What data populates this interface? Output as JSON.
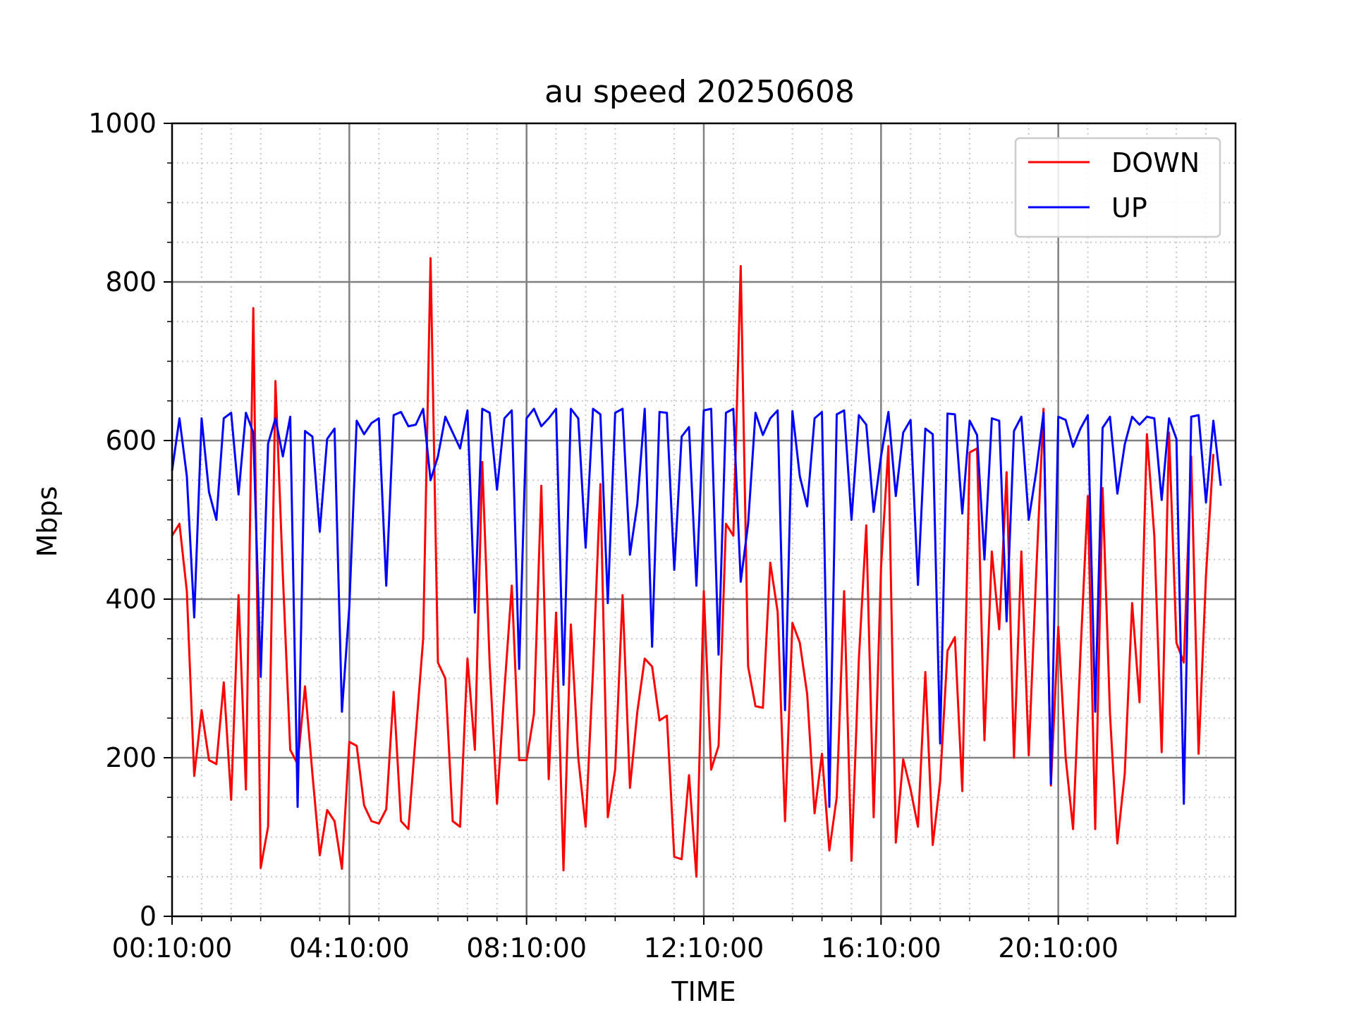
{
  "chart_data": {
    "type": "line",
    "title": "au speed 20250608",
    "xlabel": "TIME",
    "ylabel": "Mbps",
    "xlim": [
      0,
      144
    ],
    "ylim": [
      0,
      1000
    ],
    "x_tick_labels": [
      "00:10:00",
      "04:10:00",
      "08:10:00",
      "12:10:00",
      "16:10:00",
      "20:10:00"
    ],
    "y_tick_labels": [
      "0",
      "200",
      "400",
      "600",
      "800",
      "1000"
    ],
    "grid": true,
    "minor_grid": true,
    "legend_position": "top-right",
    "series": [
      {
        "name": "DOWN",
        "color": "#ff0000",
        "values": [
          480,
          495,
          410,
          177,
          260,
          197,
          192,
          295,
          147,
          405,
          160,
          767,
          61,
          113,
          675,
          430,
          210,
          192,
          290,
          180,
          77,
          134,
          120,
          60,
          220,
          215,
          140,
          120,
          117,
          135,
          283,
          120,
          110,
          230,
          350,
          830,
          320,
          300,
          120,
          113,
          325,
          210,
          573,
          320,
          142,
          285,
          417,
          197,
          197,
          255,
          543,
          173,
          383,
          58,
          368,
          200,
          113,
          310,
          545,
          125,
          185,
          405,
          162,
          258,
          325,
          315,
          247,
          253,
          75,
          72,
          178,
          50,
          410,
          185,
          215,
          495,
          480,
          820,
          315,
          265,
          263,
          446,
          384,
          120,
          370,
          345,
          280,
          130,
          205,
          83,
          150,
          410,
          70,
          325,
          493,
          125,
          440,
          593,
          93,
          198,
          160,
          113,
          308,
          90,
          170,
          335,
          352,
          158,
          585,
          590,
          222,
          460,
          362,
          560,
          200,
          460,
          203,
          430,
          640,
          165,
          365,
          200,
          110,
          330,
          530,
          110,
          540,
          255,
          92,
          180,
          395,
          270,
          608,
          480,
          207,
          610,
          345,
          320,
          580,
          205,
          430,
          583
        ]
      },
      {
        "name": "UP",
        "color": "#0000ff",
        "values": [
          562,
          628,
          555,
          377,
          628,
          535,
          500,
          628,
          635,
          532,
          635,
          610,
          302,
          596,
          628,
          580,
          630,
          138,
          612,
          605,
          485,
          602,
          615,
          258,
          390,
          625,
          608,
          622,
          628,
          417,
          632,
          636,
          618,
          620,
          640,
          550,
          580,
          630,
          610,
          590,
          638,
          383,
          640,
          635,
          538,
          628,
          638,
          312,
          628,
          640,
          618,
          628,
          640,
          292,
          640,
          628,
          465,
          640,
          633,
          395,
          635,
          640,
          456,
          520,
          640,
          340,
          636,
          635,
          437,
          605,
          617,
          417,
          638,
          640,
          330,
          635,
          640,
          422,
          495,
          635,
          607,
          628,
          638,
          260,
          637,
          555,
          517,
          628,
          636,
          138,
          633,
          638,
          500,
          632,
          620,
          510,
          580,
          636,
          530,
          610,
          626,
          418,
          615,
          608,
          218,
          634,
          633,
          508,
          625,
          607,
          450,
          628,
          625,
          372,
          612,
          630,
          500,
          560,
          635,
          167,
          630,
          626,
          592,
          615,
          632,
          258,
          616,
          630,
          533,
          595,
          630,
          620,
          630,
          628,
          525,
          628,
          602,
          142,
          630,
          632,
          522,
          625,
          543
        ]
      }
    ]
  }
}
